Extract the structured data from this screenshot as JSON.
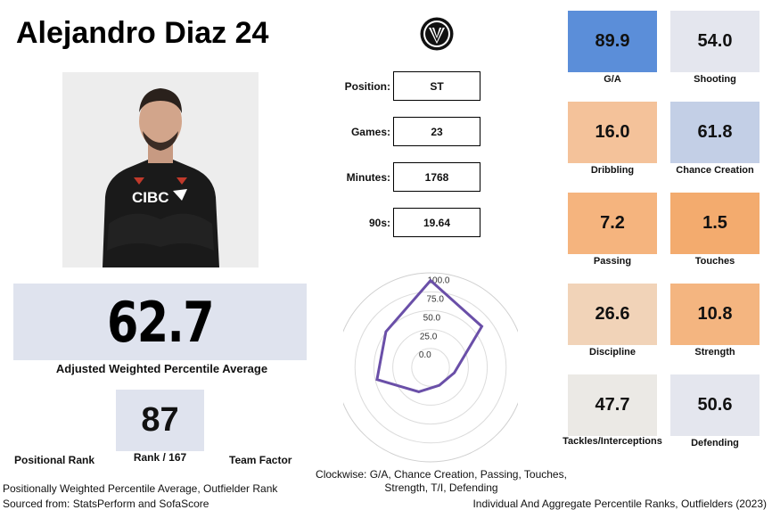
{
  "header": {
    "title": "Alejandro Diaz 24"
  },
  "info": [
    {
      "label": "Position:",
      "value": "ST"
    },
    {
      "label": "Games:",
      "value": "23"
    },
    {
      "label": "Minutes:",
      "value": "1768"
    },
    {
      "label": "90s:",
      "value": "19.64"
    }
  ],
  "summary": {
    "score": "62.7",
    "score_caption": "Adjusted Weighted Percentile Average",
    "rank": "87",
    "rank_caption": "Rank / 167",
    "positional_rank_label": "Positional Rank",
    "team_factor_label": "Team Factor"
  },
  "tiles": [
    {
      "value": "89.9",
      "label": "G/A",
      "color": "#5b8ed9"
    },
    {
      "value": "54.0",
      "label": "Shooting",
      "color": "#e4e6ee"
    },
    {
      "value": "16.0",
      "label": "Dribbling",
      "color": "#f4c29a"
    },
    {
      "value": "61.8",
      "label": "Chance Creation",
      "color": "#c3cfe6"
    },
    {
      "value": "7.2",
      "label": "Passing",
      "color": "#f5b47e"
    },
    {
      "value": "1.5",
      "label": "Touches",
      "color": "#f3ab6e"
    },
    {
      "value": "26.6",
      "label": "Discipline",
      "color": "#f1d3b8"
    },
    {
      "value": "10.8",
      "label": "Strength",
      "color": "#f4b580"
    },
    {
      "value": "47.7",
      "label": "Tackles/Interceptions",
      "color": "#ebe9e5"
    },
    {
      "value": "50.6",
      "label": "Defending",
      "color": "#e4e6ee"
    }
  ],
  "chart_data": {
    "type": "radar",
    "categories": [
      "G/A",
      "Chance Creation",
      "Passing",
      "Touches",
      "Strength",
      "T/I",
      "Defending"
    ],
    "values": [
      89.9,
      61.8,
      7.2,
      1.5,
      10.8,
      47.7,
      50.6
    ],
    "r_ticks": [
      "0.0",
      "25.0",
      "50.0",
      "75.0",
      "100.0"
    ],
    "rlim": [
      -25,
      100
    ],
    "line_color": "#6a4fa8"
  },
  "footer": {
    "radar_caption": "Clockwise: G/A, Chance Creation, Passing, Touches, Strength, T/I, Defending",
    "line1": "Positionally Weighted Percentile Average, Outfielder Rank",
    "line2": "Sourced from: StatsPerform and SofaScore",
    "right": "Individual And Aggregate Percentile Ranks, Outfielders (2023)"
  }
}
